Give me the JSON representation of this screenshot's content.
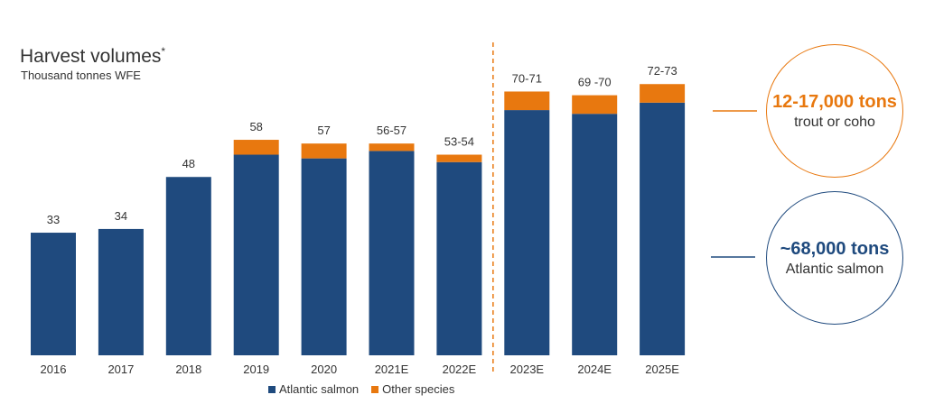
{
  "header": {
    "title": "Harvest volumes",
    "title_mark": "*",
    "subtitle": "Thousand tonnes WFE"
  },
  "colors": {
    "atlantic_salmon": "#1f4a7e",
    "other_species": "#e8780f",
    "axis_text": "#333333"
  },
  "chart_data": {
    "type": "bar",
    "stacked": true,
    "categories": [
      "2016",
      "2017",
      "2018",
      "2019",
      "2020",
      "2021E",
      "2022E",
      "2023E",
      "2024E",
      "2025E"
    ],
    "series": [
      {
        "name": "Atlantic salmon",
        "values": [
          33,
          34,
          48,
          54,
          53,
          55,
          52,
          66,
          65,
          68
        ]
      },
      {
        "name": "Other species",
        "values": [
          0,
          0,
          0,
          4,
          4,
          2,
          2,
          5,
          5,
          5
        ]
      }
    ],
    "data_labels": [
      "33",
      "34",
      "48",
      "58",
      "57",
      "56-57",
      "53-54",
      "70-71",
      "69 -70",
      "72-73"
    ],
    "forecast_divider_after": "2022E",
    "ylim": [
      0,
      80
    ],
    "grid": false,
    "legend_position": "bottom"
  },
  "callouts": [
    {
      "big": "12-17,000 tons",
      "small": "trout or coho",
      "color": "#e8780f"
    },
    {
      "big": "~68,000 tons",
      "small": "Atlantic salmon",
      "color": "#1f4a7e"
    }
  ]
}
